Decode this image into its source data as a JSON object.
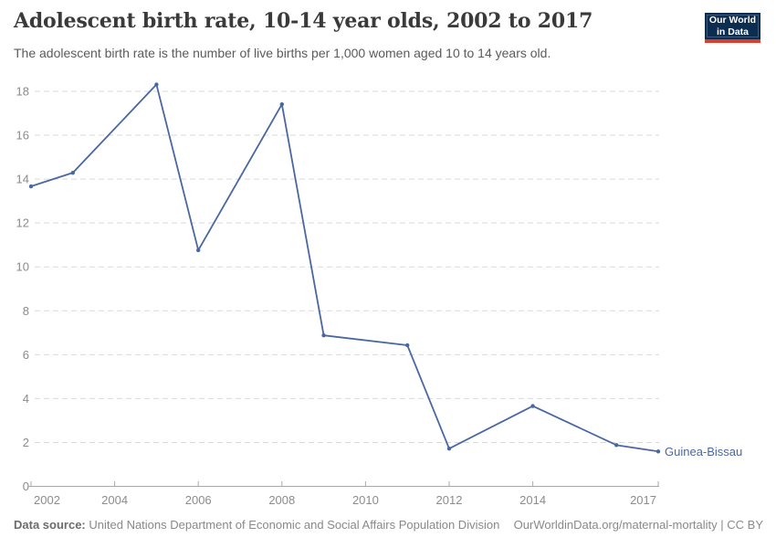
{
  "header": {
    "title": "Adolescent birth rate, 10-14 year olds, 2002 to 2017",
    "subtitle": "The adolescent birth rate is the number of live births per 1,000 women aged 10 to 14 years old.",
    "logo": {
      "line1": "Our World",
      "line2": "in Data",
      "bg_color": "#0c2d50",
      "bar_color": "#d7402e"
    }
  },
  "chart_data": {
    "type": "line",
    "title": "Adolescent birth rate, 10-14 year olds, 2002 to 2017",
    "xlabel": "",
    "ylabel": "",
    "xlim": [
      2002,
      2017
    ],
    "ylim": [
      0,
      18
    ],
    "x_ticks": [
      2002,
      2004,
      2006,
      2008,
      2010,
      2012,
      2014,
      2017
    ],
    "y_ticks": [
      0,
      2,
      4,
      6,
      8,
      10,
      12,
      14,
      16,
      18
    ],
    "grid": "horizontal-dashed",
    "legend_position": "end-of-line-label",
    "series": [
      {
        "name": "Guinea-Bissau",
        "color": "#4a67a3",
        "x": [
          2002,
          2003,
          2005,
          2006,
          2008,
          2009,
          2011,
          2012,
          2014,
          2016,
          2017
        ],
        "values": [
          13.67,
          14.29,
          18.31,
          10.76,
          17.41,
          6.88,
          6.43,
          1.72,
          3.66,
          1.88,
          1.59
        ]
      }
    ],
    "end_label": "Guinea-Bissau"
  },
  "footer": {
    "data_source_label": "Data source:",
    "data_source_value": "United Nations Department of Economic and Social Affairs Population Division",
    "attribution": "OurWorldinData.org/maternal-mortality | CC BY"
  },
  "colors": {
    "accent_line": "#4a67a3",
    "gridline": "#d9d9d9",
    "axis": "#a9a9a9",
    "tick_label": "#8c8c8c",
    "logo_navy": "#0c2d50",
    "logo_red": "#d7402e"
  }
}
